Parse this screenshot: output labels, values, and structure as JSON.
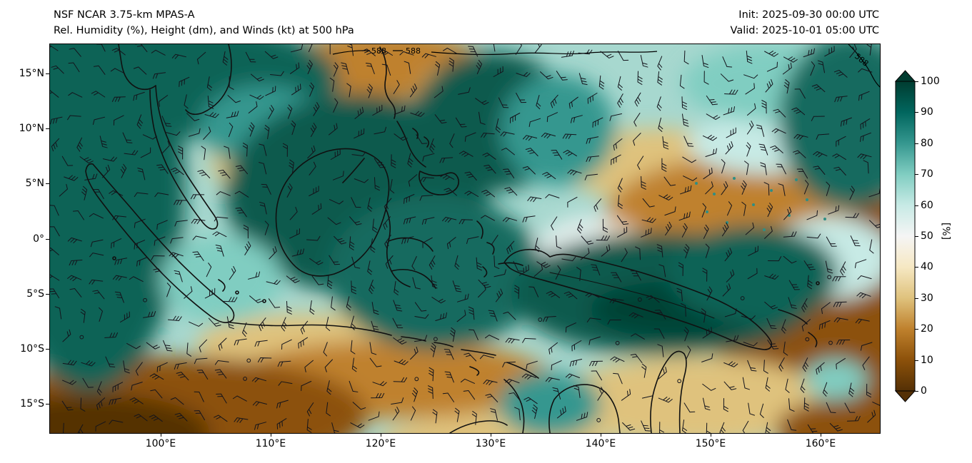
{
  "header": {
    "title_line1": "NSF NCAR 3.75-km MPAS-A",
    "title_line2": "Rel. Humidity (%), Height (dm), and Winds (kt) at 500 hPa",
    "init_time": "Init: 2025-09-30 00:00 UTC",
    "valid_time": "Valid: 2025-10-01 05:00 UTC"
  },
  "map": {
    "y_tick_labels": [
      "15°N",
      "10°N",
      "5°N",
      "0°",
      "5°S",
      "10°S",
      "15°S"
    ],
    "x_tick_labels": [
      "100°E",
      "110°E",
      "120°E",
      "130°E",
      "140°E",
      "150°E",
      "160°E"
    ],
    "contour_label": "588"
  },
  "colorbar": {
    "unit": "[%]",
    "tick_labels": [
      "0",
      "10",
      "20",
      "30",
      "40",
      "50",
      "60",
      "70",
      "80",
      "90",
      "100"
    ],
    "palette": [
      "#543005",
      "#8c510a",
      "#bf812d",
      "#dfc27d",
      "#f6e8c3",
      "#f5f5f5",
      "#c7eae5",
      "#80cdc1",
      "#35978f",
      "#01665e",
      "#003c30"
    ]
  },
  "chart_data": {
    "type": "heatmap",
    "model": "NSF NCAR 3.75-km MPAS-A",
    "field": "Relative Humidity",
    "field_units": "%",
    "level": "500 hPa",
    "init": "2025-09-30 00:00 UTC",
    "valid": "2025-10-01 05:00 UTC",
    "colorbar_range": [
      0,
      100
    ],
    "height_contour_labels_dm": [
      588
    ],
    "x_tick_labels": [
      "100°E",
      "110°E",
      "120°E",
      "130°E",
      "140°E",
      "150°E",
      "160°E"
    ],
    "y_tick_labels": [
      "15°N",
      "10°N",
      "5°N",
      "0°",
      "5°S",
      "10°S",
      "15°S"
    ]
  }
}
